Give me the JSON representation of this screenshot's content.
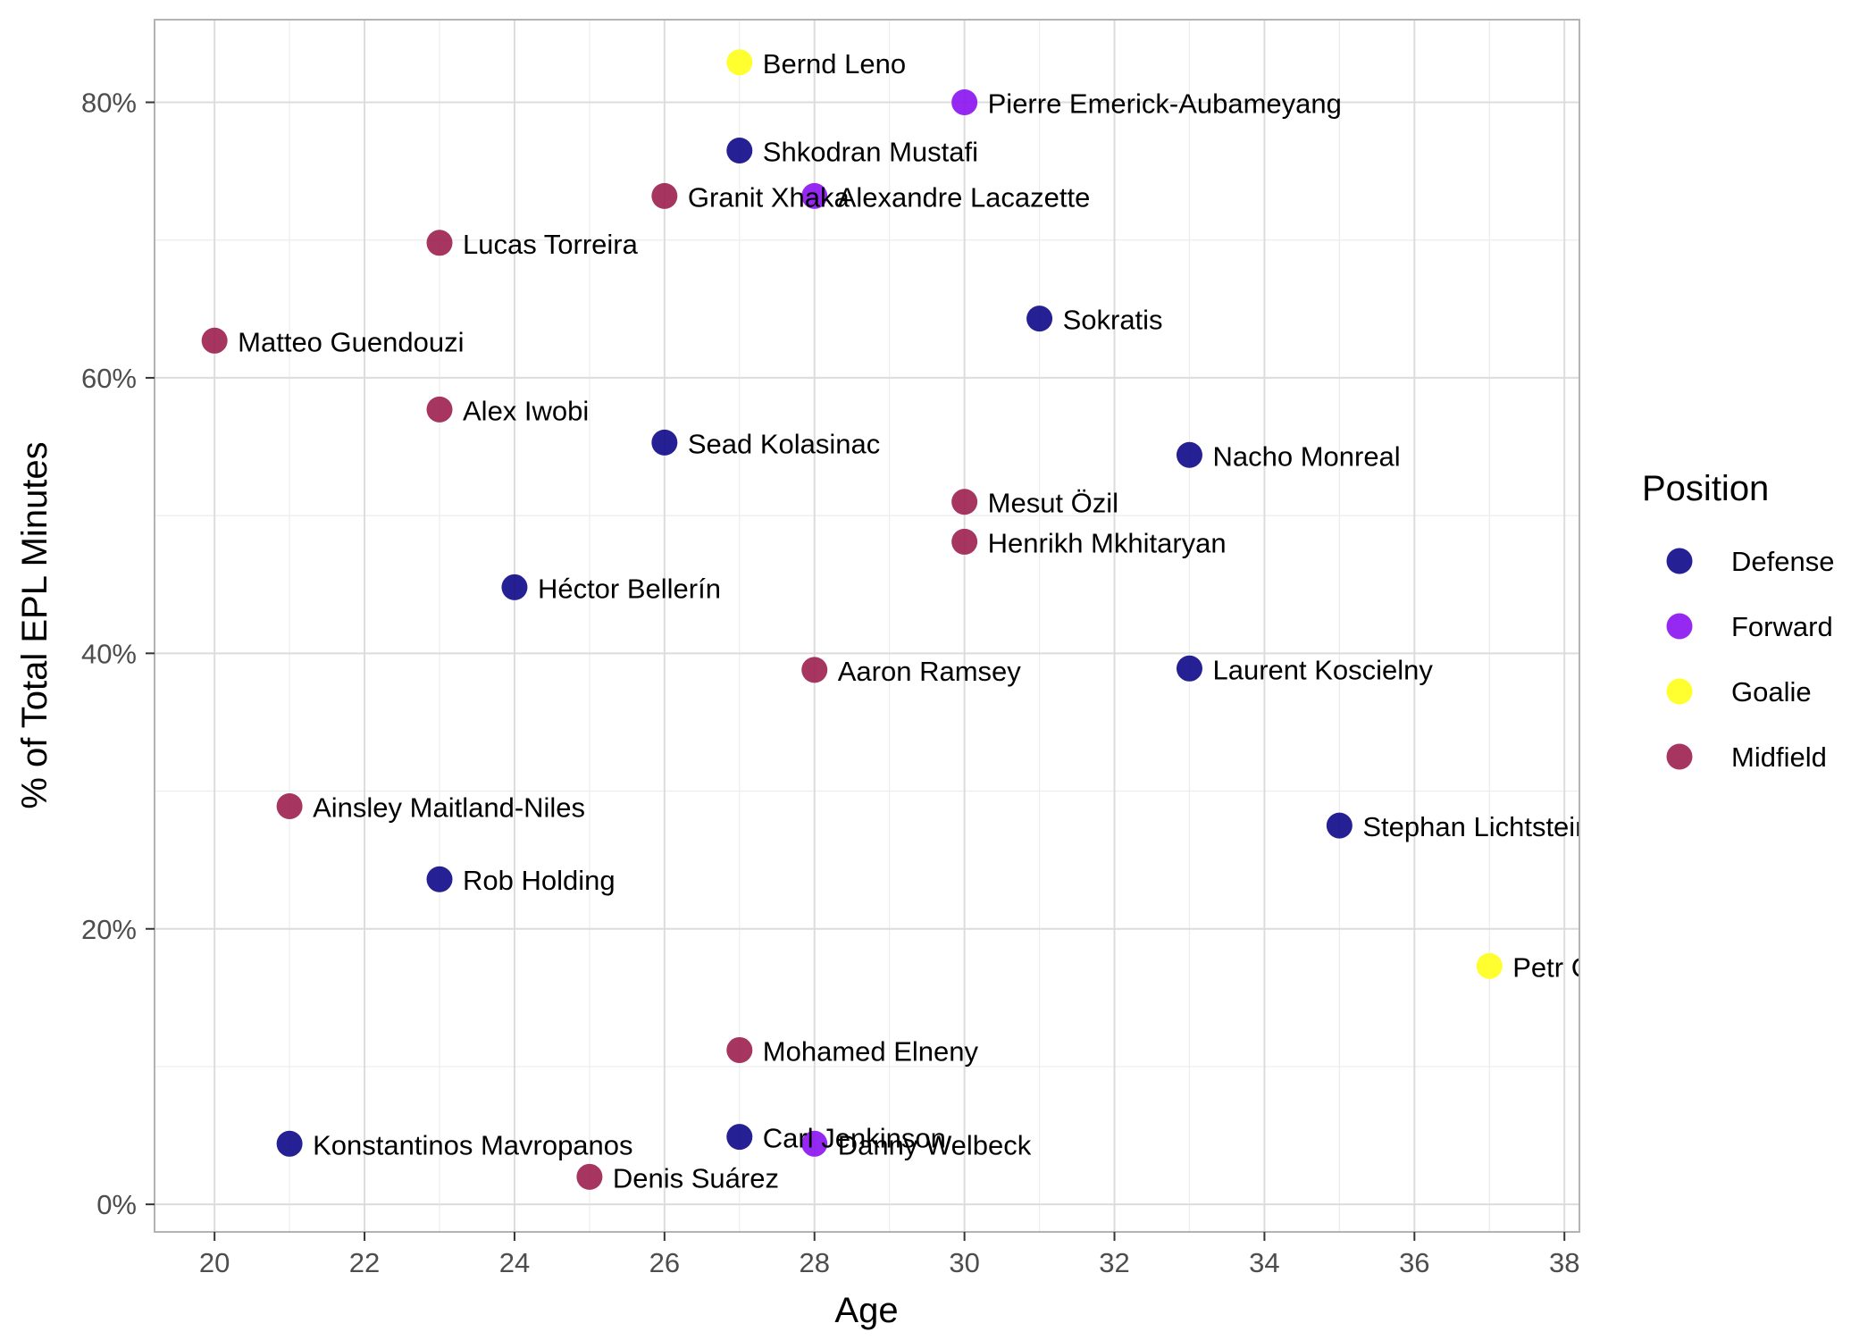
{
  "chart_data": {
    "type": "scatter",
    "xlabel": "Age",
    "ylabel": "% of Total EPL Minutes",
    "xlim": [
      19.2,
      38.2
    ],
    "ylim": [
      -2,
      86
    ],
    "x_ticks": [
      20,
      22,
      24,
      26,
      28,
      30,
      32,
      34,
      36,
      38
    ],
    "x_tick_labels": [
      "20",
      "22",
      "24",
      "26",
      "28",
      "30",
      "32",
      "34",
      "36",
      "38"
    ],
    "y_ticks": [
      0,
      20,
      40,
      60,
      80
    ],
    "y_tick_labels": [
      "0%",
      "20%",
      "40%",
      "60%",
      "80%"
    ],
    "grid": true,
    "legend": {
      "title": "Position",
      "placement": "right",
      "entries": [
        {
          "name": "Defense",
          "color": "#0d0887"
        },
        {
          "name": "Forward",
          "color": "#8a12f0"
        },
        {
          "name": "Goalie",
          "color": "#ffff1a"
        },
        {
          "name": "Midfield",
          "color": "#9c1f4f"
        }
      ]
    },
    "points": [
      {
        "label": "Bernd Leno",
        "x": 27,
        "y": 82.9,
        "position": "Goalie"
      },
      {
        "label": "Pierre Emerick-Aubameyang",
        "x": 30,
        "y": 80.0,
        "position": "Forward"
      },
      {
        "label": "Shkodran Mustafi",
        "x": 27,
        "y": 76.5,
        "position": "Defense"
      },
      {
        "label": "Granit Xhaka",
        "x": 26,
        "y": 73.2,
        "position": "Midfield"
      },
      {
        "label": "Alexandre Lacazette",
        "x": 28,
        "y": 73.2,
        "position": "Forward"
      },
      {
        "label": "Lucas Torreira",
        "x": 23,
        "y": 69.8,
        "position": "Midfield"
      },
      {
        "label": "Sokratis",
        "x": 31,
        "y": 64.3,
        "position": "Defense"
      },
      {
        "label": "Matteo Guendouzi",
        "x": 20,
        "y": 62.7,
        "position": "Midfield"
      },
      {
        "label": "Alex Iwobi",
        "x": 23,
        "y": 57.7,
        "position": "Midfield"
      },
      {
        "label": "Sead Kolasinac",
        "x": 26,
        "y": 55.3,
        "position": "Defense"
      },
      {
        "label": "Nacho Monreal",
        "x": 33,
        "y": 54.4,
        "position": "Defense"
      },
      {
        "label": "Mesut Özil",
        "x": 30,
        "y": 51.0,
        "position": "Midfield"
      },
      {
        "label": "Henrikh Mkhitaryan",
        "x": 30,
        "y": 48.1,
        "position": "Midfield"
      },
      {
        "label": "Héctor Bellerín",
        "x": 24,
        "y": 44.8,
        "position": "Defense"
      },
      {
        "label": "Aaron Ramsey",
        "x": 28,
        "y": 38.8,
        "position": "Midfield"
      },
      {
        "label": "Laurent Koscielny",
        "x": 33,
        "y": 38.9,
        "position": "Defense"
      },
      {
        "label": "Ainsley Maitland-Niles",
        "x": 21,
        "y": 28.9,
        "position": "Midfield"
      },
      {
        "label": "Stephan Lichtsteiner",
        "x": 35,
        "y": 27.5,
        "position": "Defense"
      },
      {
        "label": "Rob Holding",
        "x": 23,
        "y": 23.6,
        "position": "Defense"
      },
      {
        "label": "Petr Cech",
        "x": 37,
        "y": 17.3,
        "position": "Goalie"
      },
      {
        "label": "Mohamed Elneny",
        "x": 27,
        "y": 11.2,
        "position": "Midfield"
      },
      {
        "label": "Konstantinos Mavropanos",
        "x": 21,
        "y": 4.4,
        "position": "Defense"
      },
      {
        "label": "Carl Jenkinson",
        "x": 27,
        "y": 4.9,
        "position": "Defense"
      },
      {
        "label": "Danny Welbeck",
        "x": 28,
        "y": 4.4,
        "position": "Forward"
      },
      {
        "label": "Denis Suárez",
        "x": 25,
        "y": 2.0,
        "position": "Midfield"
      }
    ]
  }
}
